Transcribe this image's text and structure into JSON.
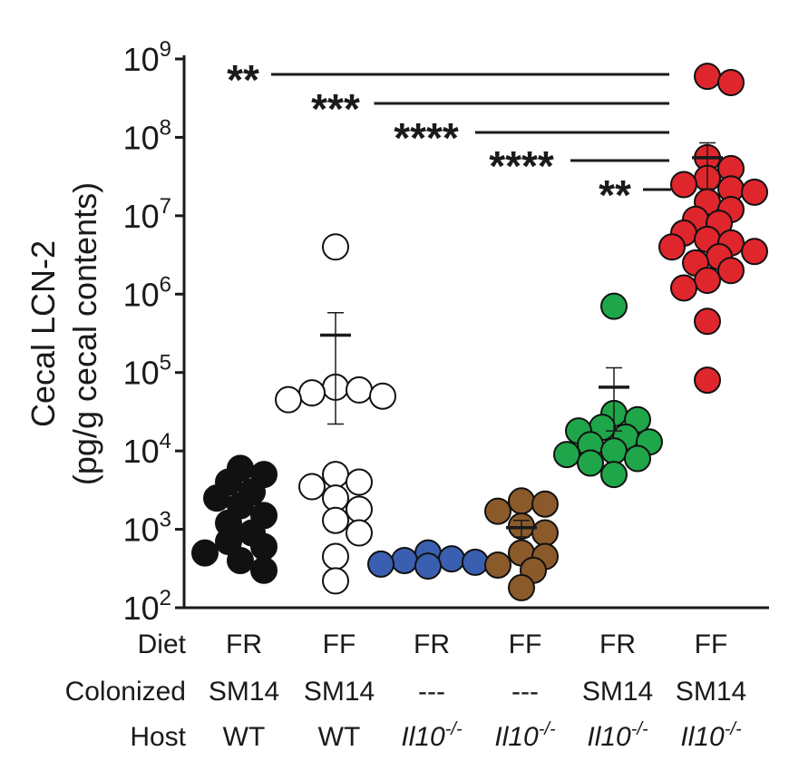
{
  "chart_data": {
    "type": "scatter",
    "ylabel_lines": [
      "Cecal LCN-2",
      "(pg/g cecal contents)"
    ],
    "yscale": "log",
    "ylim": [
      100,
      1000000000
    ],
    "yticks": [
      {
        "value": 100,
        "base": "10",
        "exp": "2"
      },
      {
        "value": 1000,
        "base": "10",
        "exp": "3"
      },
      {
        "value": 10000,
        "base": "10",
        "exp": "4"
      },
      {
        "value": 100000,
        "base": "10",
        "exp": "5"
      },
      {
        "value": 1000000,
        "base": "10",
        "exp": "6"
      },
      {
        "value": 10000000,
        "base": "10",
        "exp": "7"
      },
      {
        "value": 100000000,
        "base": "10",
        "exp": "8"
      },
      {
        "value": 1000000000,
        "base": "10",
        "exp": "9"
      }
    ],
    "row_labels": {
      "diet": "Diet",
      "colonized": "Colonized",
      "host": "Host"
    },
    "groups": [
      {
        "diet": "FR",
        "colonized": "SM14",
        "host": "WT",
        "host_italic": false,
        "fill": "#111111",
        "stroke": "#111111",
        "mean": null,
        "sem": null,
        "points": [
          6000,
          5000,
          4000,
          3000,
          2500,
          2000,
          1500,
          1200,
          900,
          700,
          600,
          500,
          400,
          300
        ]
      },
      {
        "diet": "FF",
        "colonized": "SM14",
        "host": "WT",
        "host_italic": false,
        "fill": "#ffffff",
        "stroke": "#111111",
        "mean": 300000,
        "sem": [
          22000,
          580000
        ],
        "points": [
          4000000,
          65000,
          60000,
          55000,
          50000,
          45000,
          5000,
          4000,
          3500,
          2500,
          1800,
          1300,
          900,
          450,
          220
        ]
      },
      {
        "diet": "FR",
        "colonized": "---",
        "host": "Il10-/-",
        "host_italic": true,
        "fill": "#3b5fb0",
        "stroke": "#111111",
        "mean": null,
        "sem": null,
        "points": [
          500,
          420,
          400,
          380,
          360,
          340
        ]
      },
      {
        "diet": "FF",
        "colonized": "---",
        "host": "Il10-/-",
        "host_italic": true,
        "fill": "#8b5a2b",
        "stroke": "#111111",
        "mean": 1050,
        "sem": [
          800,
          1300
        ],
        "points": [
          2300,
          2100,
          1700,
          1100,
          900,
          500,
          450,
          350,
          300,
          180
        ]
      },
      {
        "diet": "FR",
        "colonized": "SM14",
        "host": "Il10-/-",
        "host_italic": true,
        "fill": "#1fa64a",
        "stroke": "#111111",
        "mean": 65000,
        "sem": [
          18000,
          115000
        ],
        "points": [
          700000,
          30000,
          25000,
          20000,
          18000,
          15000,
          13000,
          12000,
          10000,
          9000,
          8000,
          7000,
          5000
        ]
      },
      {
        "diet": "FF",
        "colonized": "SM14",
        "host": "Il10-/-",
        "host_italic": true,
        "fill": "#e0262d",
        "stroke": "#111111",
        "mean": 55000000,
        "sem": [
          22000000,
          85000000
        ],
        "points": [
          600000000,
          500000000,
          55000000,
          40000000,
          30000000,
          25000000,
          22000000,
          20000000,
          15000000,
          12000000,
          9000000,
          8000000,
          6000000,
          5000000,
          4500000,
          4000000,
          3500000,
          3000000,
          2500000,
          2000000,
          1500000,
          1200000,
          450000,
          80000
        ]
      }
    ],
    "significance": [
      {
        "label": "**",
        "from_group": 0,
        "to_group": 5,
        "level": 0
      },
      {
        "label": "***",
        "from_group": 1,
        "to_group": 5,
        "level": 1
      },
      {
        "label": "****",
        "from_group": 2,
        "to_group": 5,
        "level": 2
      },
      {
        "label": "****",
        "from_group": 3,
        "to_group": 5,
        "level": 3
      },
      {
        "label": "**",
        "from_group": 4,
        "to_group": 5,
        "level": 4
      }
    ]
  }
}
